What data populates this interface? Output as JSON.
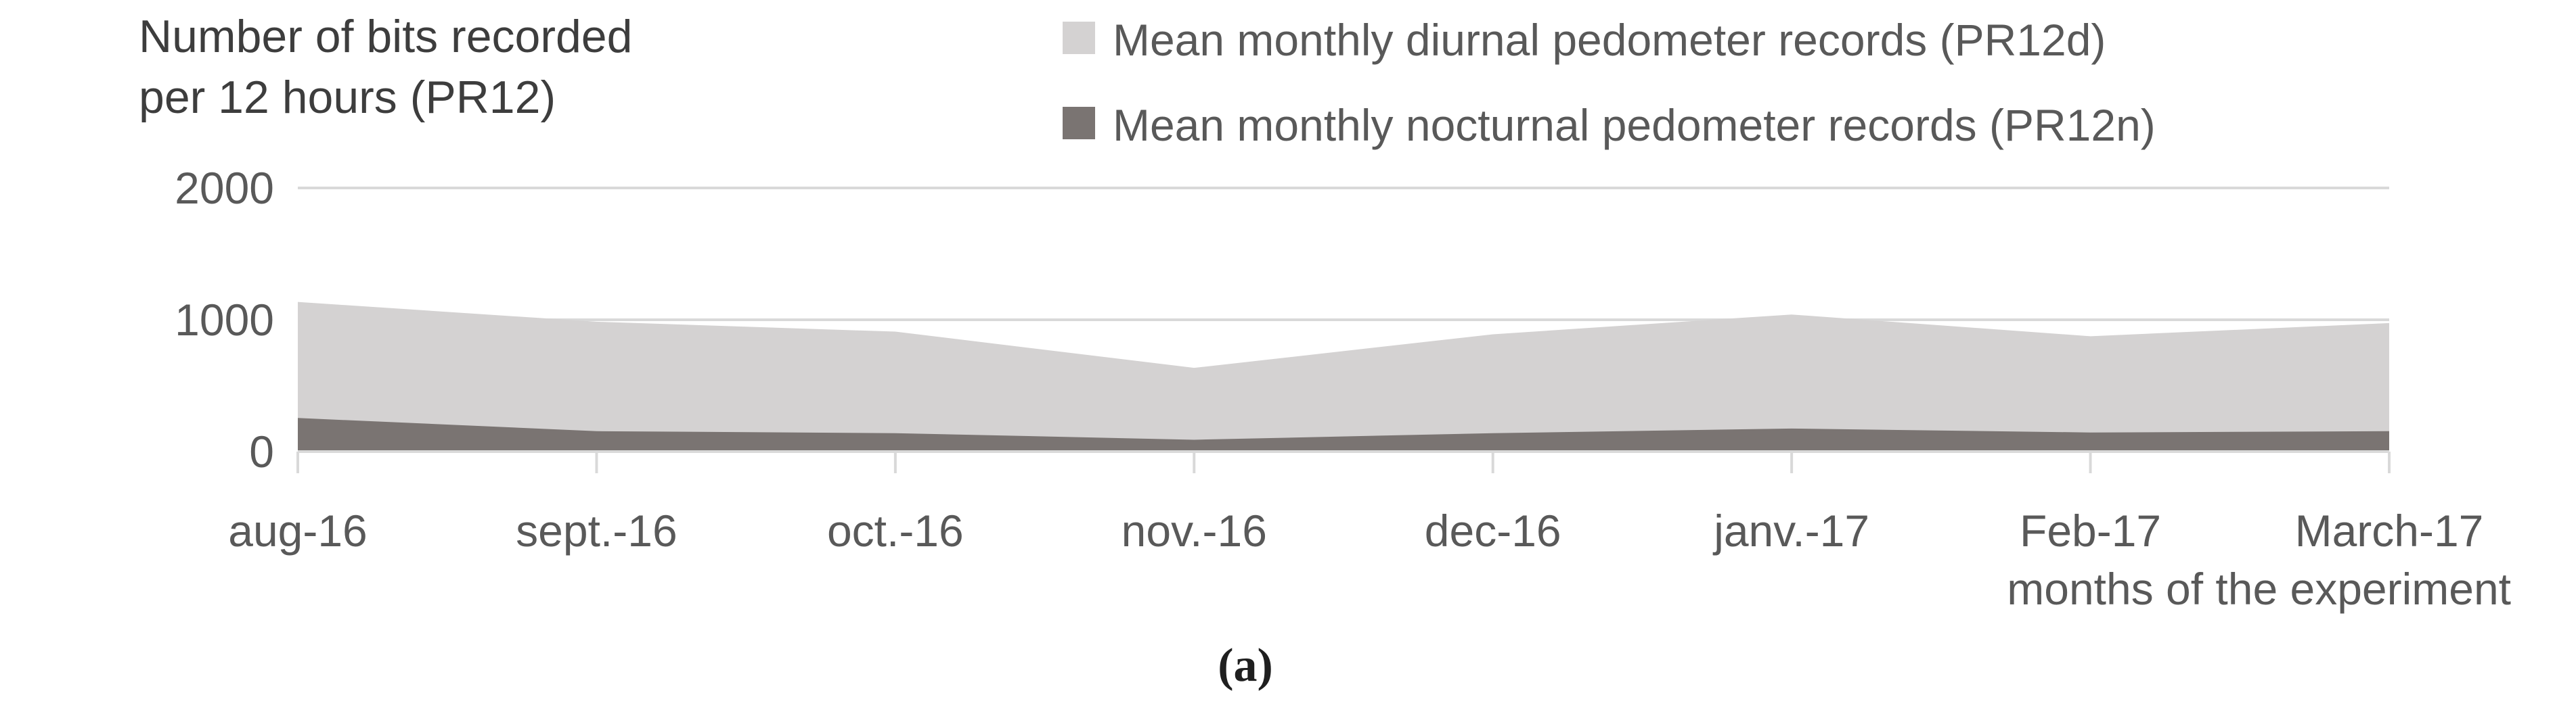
{
  "title": {
    "line1": "Number of bits recorded",
    "line2": "per 12 hours (PR12)"
  },
  "legend": [
    {
      "label": "Mean monthly diurnal pedometer records (PR12d)",
      "color": "#d4d2d2"
    },
    {
      "label": "Mean monthly nocturnal pedometer records (PR12n)",
      "color": "#7a7472"
    }
  ],
  "axis": {
    "x_title": "months of the experiment",
    "y_ticks": [
      "2000",
      "1000",
      "0"
    ]
  },
  "caption": "(a)",
  "colors": {
    "diurnal_area": "#d4d2d2",
    "nocturnal_area": "#7a7472",
    "gridline": "#d9d9d9",
    "text": "#595959"
  },
  "chart_data": {
    "type": "area",
    "title": "Number of bits recorded per 12 hours (PR12)",
    "xlabel": "months of the experiment",
    "ylabel": "",
    "categories": [
      "aug-16",
      "sept.-16",
      "oct.-16",
      "nov.-16",
      "dec-16",
      "janv.-17",
      "Feb-17",
      "March-17"
    ],
    "series": [
      {
        "name": "Mean monthly diurnal pedometer records (PR12d)",
        "values": [
          1135,
          985,
          910,
          635,
          890,
          1040,
          875,
          975
        ],
        "color": "#d4d2d2"
      },
      {
        "name": "Mean monthly nocturnal pedometer records (PR12n)",
        "values": [
          255,
          155,
          140,
          90,
          140,
          175,
          145,
          155
        ],
        "color": "#7a7472"
      }
    ],
    "ylim": [
      0,
      2000
    ],
    "yticks": [
      0,
      1000,
      2000
    ],
    "grid": "horizontal",
    "legend_position": "top-right",
    "note": "nocturnal series drawn in front of diurnal series; both areas filled down to the zero baseline"
  }
}
